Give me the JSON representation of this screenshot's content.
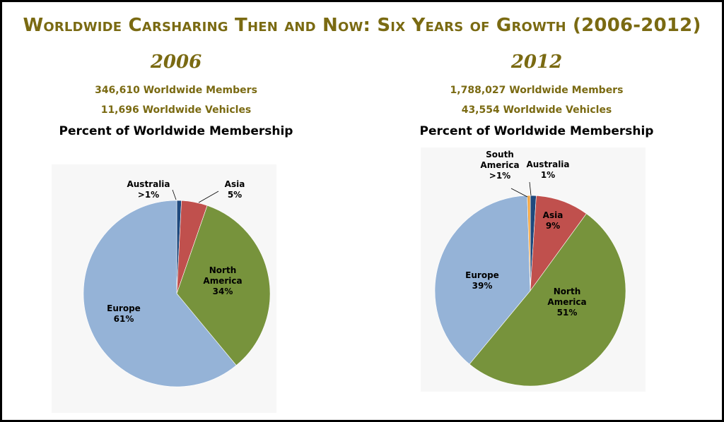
{
  "title": "Worldwide Carsharing Then and Now: Six Years of Growth (2006-2012)",
  "colors": {
    "Australia": "#1f497d",
    "Asia": "#c0504d",
    "North America": "#77933c",
    "Europe": "#95b3d7",
    "South America": "#f2a540",
    "title": "#7a6a12"
  },
  "panels": [
    {
      "year": "2006",
      "members": "346,610 Worldwide Members",
      "vehicles": "11,696 Worldwide Vehicles",
      "subtitle": "Percent of Worldwide Membership"
    },
    {
      "year": "2012",
      "members": "1,788,027 Worldwide Members",
      "vehicles": "43,554 Worldwide Vehicles",
      "subtitle": "Percent of Worldwide Membership"
    }
  ],
  "chart_data": [
    {
      "type": "pie",
      "title": "Percent of Worldwide Membership",
      "slices": [
        {
          "name": "Australia",
          "value": 0.8,
          "label": [
            "Australia",
            ">1%"
          ]
        },
        {
          "name": "Asia",
          "value": 4.5,
          "label": [
            "Asia",
            "5%"
          ]
        },
        {
          "name": "North America",
          "value": 33.7,
          "label": [
            "North",
            "America",
            "34%"
          ]
        },
        {
          "name": "Europe",
          "value": 61,
          "label": [
            "Europe",
            "61%"
          ]
        }
      ]
    },
    {
      "type": "pie",
      "title": "Percent of Worldwide Membership",
      "slices": [
        {
          "name": "Australia",
          "value": 1,
          "label": [
            "Australia",
            "1%"
          ]
        },
        {
          "name": "Asia",
          "value": 9,
          "label": [
            "Asia",
            "9%"
          ]
        },
        {
          "name": "North America",
          "value": 51,
          "label": [
            "North",
            "America",
            "51%"
          ]
        },
        {
          "name": "Europe",
          "value": 38.5,
          "label": [
            "Europe",
            "39%"
          ]
        },
        {
          "name": "South America",
          "value": 0.5,
          "label": [
            "South",
            "America",
            ">1%"
          ]
        }
      ]
    }
  ]
}
